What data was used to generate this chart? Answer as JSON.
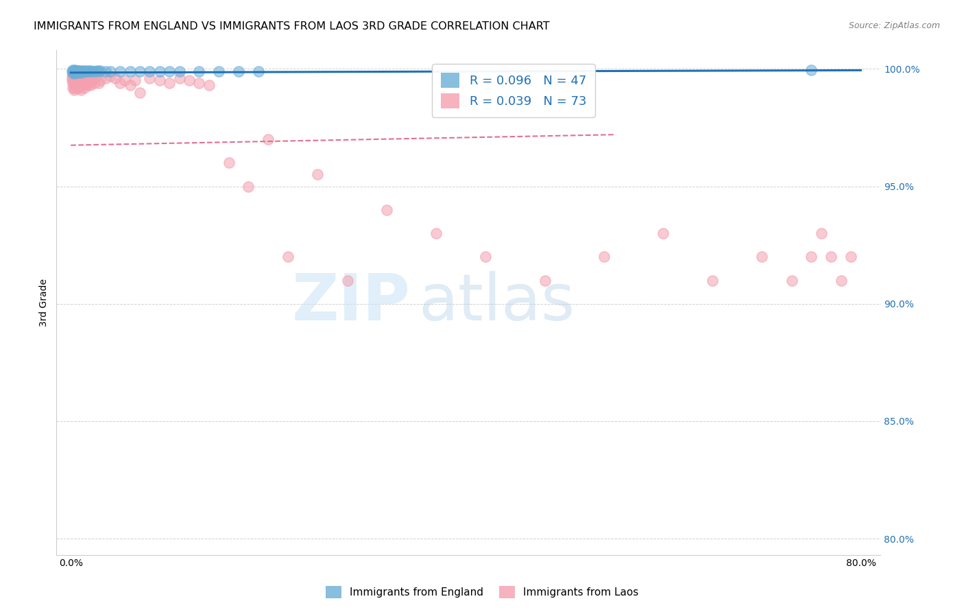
{
  "title": "IMMIGRANTS FROM ENGLAND VS IMMIGRANTS FROM LAOS 3RD GRADE CORRELATION CHART",
  "source": "Source: ZipAtlas.com",
  "ylabel_label": "3rd Grade",
  "x_tick_positions": [
    0.0,
    0.1,
    0.2,
    0.3,
    0.4,
    0.5,
    0.6,
    0.7,
    0.8
  ],
  "x_tick_labels": [
    "0.0%",
    "",
    "",
    "",
    "",
    "",
    "",
    "",
    "80.0%"
  ],
  "y_tick_positions": [
    0.8,
    0.85,
    0.9,
    0.95,
    1.0
  ],
  "y_tick_labels": [
    "80.0%",
    "85.0%",
    "90.0%",
    "95.0%",
    "100.0%"
  ],
  "england_R": 0.096,
  "england_N": 47,
  "laos_R": 0.039,
  "laos_N": 73,
  "england_color": "#6baed6",
  "laos_color": "#f4a0b0",
  "england_line_color": "#2171b5",
  "laos_line_color": "#e07090",
  "england_scatter_x": [
    0.001,
    0.002,
    0.002,
    0.003,
    0.003,
    0.004,
    0.004,
    0.005,
    0.005,
    0.006,
    0.006,
    0.007,
    0.007,
    0.008,
    0.009,
    0.01,
    0.01,
    0.011,
    0.012,
    0.013,
    0.014,
    0.015,
    0.016,
    0.017,
    0.018,
    0.019,
    0.02,
    0.022,
    0.024,
    0.026,
    0.028,
    0.03,
    0.035,
    0.04,
    0.05,
    0.06,
    0.07,
    0.08,
    0.09,
    0.1,
    0.11,
    0.13,
    0.15,
    0.17,
    0.19,
    0.4,
    0.75
  ],
  "england_scatter_y": [
    0.999,
    0.9995,
    0.9985,
    0.999,
    0.998,
    0.9995,
    0.9988,
    0.9992,
    0.9985,
    0.999,
    0.9988,
    0.9993,
    0.9985,
    0.9992,
    0.9988,
    0.999,
    0.9985,
    0.9992,
    0.999,
    0.9988,
    0.9992,
    0.999,
    0.9988,
    0.9992,
    0.999,
    0.9988,
    0.9992,
    0.999,
    0.999,
    0.9992,
    0.999,
    0.9992,
    0.999,
    0.999,
    0.999,
    0.9988,
    0.999,
    0.999,
    0.999,
    0.999,
    0.999,
    0.999,
    0.999,
    0.999,
    0.999,
    0.986,
    0.9995
  ],
  "laos_scatter_x": [
    0.001,
    0.001,
    0.002,
    0.002,
    0.002,
    0.003,
    0.003,
    0.003,
    0.004,
    0.004,
    0.004,
    0.005,
    0.005,
    0.006,
    0.006,
    0.007,
    0.007,
    0.008,
    0.008,
    0.009,
    0.009,
    0.01,
    0.01,
    0.011,
    0.012,
    0.013,
    0.014,
    0.015,
    0.016,
    0.017,
    0.018,
    0.019,
    0.02,
    0.022,
    0.024,
    0.026,
    0.028,
    0.03,
    0.035,
    0.04,
    0.045,
    0.05,
    0.055,
    0.06,
    0.065,
    0.07,
    0.08,
    0.09,
    0.1,
    0.11,
    0.12,
    0.13,
    0.14,
    0.16,
    0.18,
    0.2,
    0.22,
    0.25,
    0.28,
    0.32,
    0.37,
    0.42,
    0.48,
    0.54,
    0.6,
    0.65,
    0.7,
    0.73,
    0.75,
    0.76,
    0.77,
    0.78,
    0.79
  ],
  "laos_scatter_y": [
    0.995,
    0.997,
    0.996,
    0.994,
    0.992,
    0.995,
    0.993,
    0.991,
    0.995,
    0.996,
    0.992,
    0.994,
    0.993,
    0.995,
    0.994,
    0.993,
    0.992,
    0.995,
    0.994,
    0.992,
    0.995,
    0.994,
    0.991,
    0.993,
    0.995,
    0.994,
    0.992,
    0.995,
    0.994,
    0.993,
    0.996,
    0.994,
    0.993,
    0.995,
    0.994,
    0.997,
    0.994,
    0.995,
    0.996,
    0.997,
    0.996,
    0.994,
    0.995,
    0.993,
    0.995,
    0.99,
    0.996,
    0.995,
    0.994,
    0.996,
    0.995,
    0.994,
    0.993,
    0.96,
    0.95,
    0.97,
    0.92,
    0.955,
    0.91,
    0.94,
    0.93,
    0.92,
    0.91,
    0.92,
    0.93,
    0.91,
    0.92,
    0.91,
    0.92,
    0.93,
    0.92,
    0.91,
    0.92
  ],
  "background_color": "#ffffff",
  "grid_color": "#d0d0d0",
  "watermark_zip": "ZIP",
  "watermark_atlas": "atlas",
  "title_fontsize": 11.5,
  "source_fontsize": 9
}
